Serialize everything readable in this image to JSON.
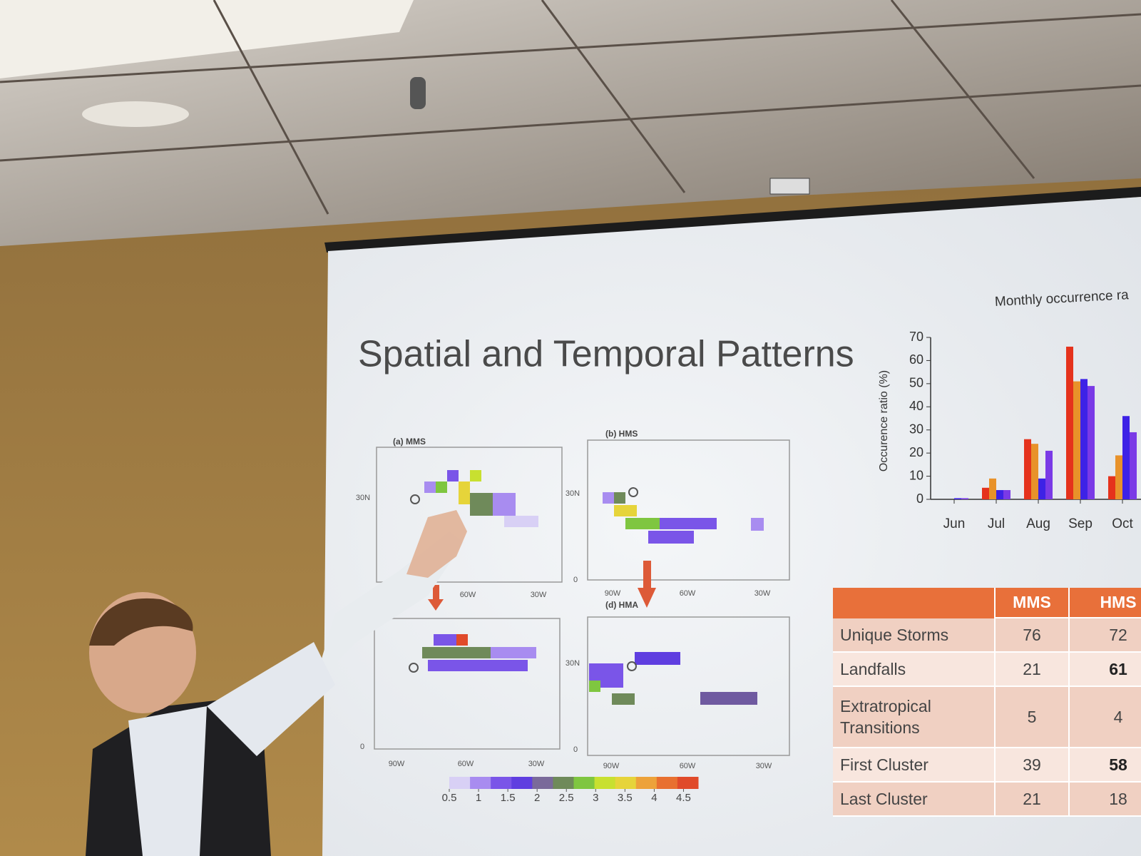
{
  "slide": {
    "title": "Spatial and Temporal Patterns"
  },
  "chart_data": {
    "type": "bar",
    "title": "Monthly occurrence ra",
    "y_label": "Occurence ratio (%)",
    "categories": [
      "Jun",
      "Jul",
      "Aug",
      "Sep",
      "Oct"
    ],
    "series": [
      {
        "color": "#e5321c",
        "values": [
          0,
          5,
          26,
          66,
          10
        ]
      },
      {
        "color": "#e8922a",
        "values": [
          0,
          9,
          24,
          51,
          19
        ]
      },
      {
        "color": "#3d22e6",
        "values": [
          0.5,
          4,
          9,
          52,
          36
        ]
      },
      {
        "color": "#7a3ae6",
        "values": [
          0.5,
          4,
          21,
          49,
          29
        ]
      }
    ],
    "ylim": [
      0,
      70
    ],
    "yticks": [
      0,
      10,
      20,
      30,
      40,
      50,
      60,
      70
    ]
  },
  "maps": {
    "panels": [
      "(a) MMS",
      "(b) HMS",
      "(d) HMA"
    ],
    "lat_labels": [
      "30N",
      "0"
    ],
    "lon_labels": [
      "90W",
      "60W",
      "30W"
    ],
    "colorbar": {
      "lim": [
        0.5,
        4.75
      ],
      "ticks": [
        0.5,
        1,
        1.5,
        2,
        2.5,
        3,
        3.5,
        4,
        4.5
      ],
      "colors": [
        "#d8d0f5",
        "#a88cf0",
        "#7a55e8",
        "#5f3ee0",
        "#7a6a9a",
        "#6f8a5a",
        "#7fc640",
        "#c8e030",
        "#e6d43a",
        "#eda23a",
        "#e87030",
        "#e04a2a"
      ]
    }
  },
  "table": {
    "header": [
      "MMS",
      "HMS"
    ],
    "rows": [
      {
        "label": "Unique Storms",
        "values": [
          76,
          72
        ],
        "bold": [
          false,
          false
        ]
      },
      {
        "label": "Landfalls",
        "values": [
          21,
          61
        ],
        "bold": [
          false,
          true
        ]
      },
      {
        "label": "Extratropical Transitions",
        "values": [
          5,
          4
        ],
        "bold": [
          false,
          false
        ]
      },
      {
        "label": "First Cluster",
        "values": [
          39,
          58
        ],
        "bold": [
          false,
          true
        ]
      },
      {
        "label": "Last Cluster",
        "values": [
          21,
          18
        ],
        "bold": [
          false,
          false
        ]
      }
    ]
  }
}
